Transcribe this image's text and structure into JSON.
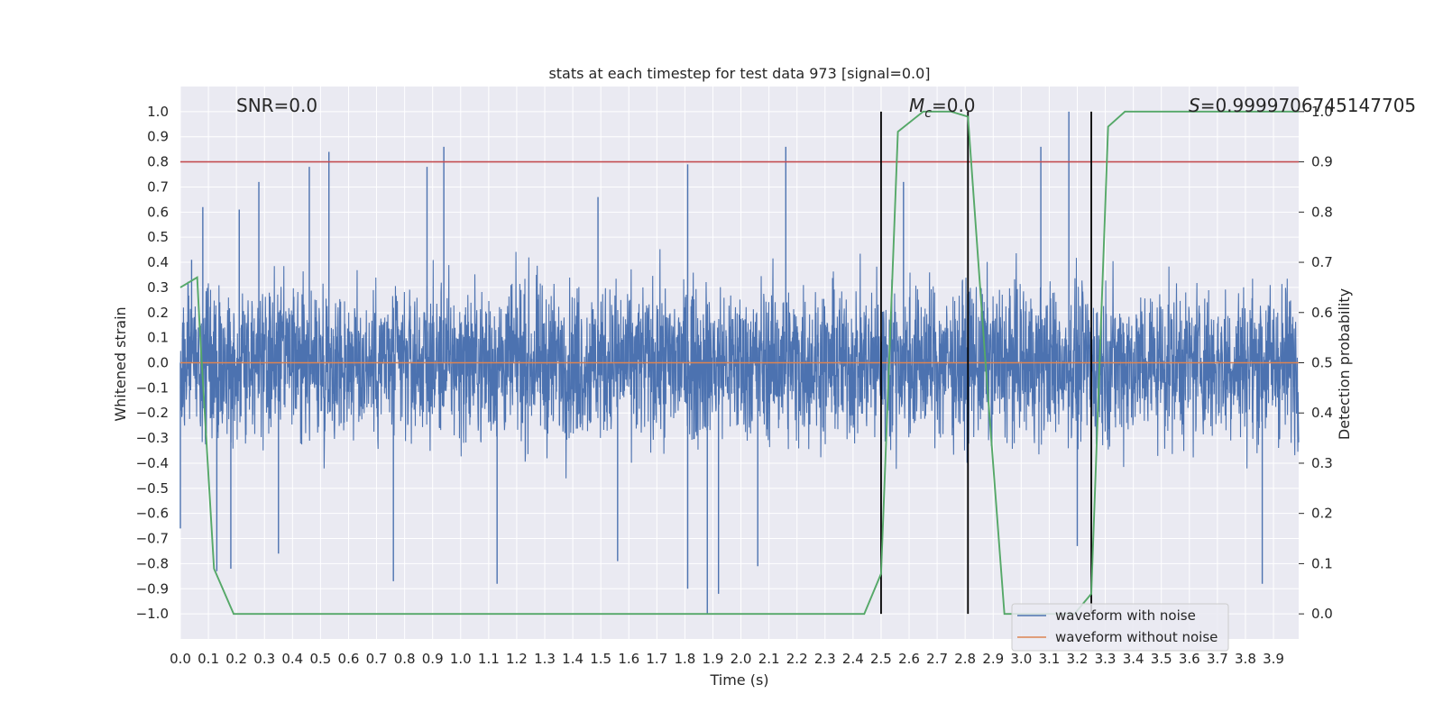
{
  "chart_data": {
    "type": "line",
    "title": "stats at each timestep for test data 973 [signal=0.0]",
    "xlabel": "Time (s)",
    "ylabel": "Whitened strain",
    "y2label": "Detection probability",
    "xlim": [
      0.0,
      3.99
    ],
    "ylim": [
      -1.1,
      1.1
    ],
    "y2lim": [
      -0.05,
      1.05
    ],
    "grid": true,
    "xticks": [
      "0.0",
      "0.1",
      "0.2",
      "0.3",
      "0.4",
      "0.5",
      "0.6",
      "0.7",
      "0.8",
      "0.9",
      "1.0",
      "1.1",
      "1.2",
      "1.3",
      "1.4",
      "1.5",
      "1.6",
      "1.7",
      "1.8",
      "1.9",
      "2.0",
      "2.1",
      "2.2",
      "2.3",
      "2.4",
      "2.5",
      "2.6",
      "2.7",
      "2.8",
      "2.9",
      "3.0",
      "3.1",
      "3.2",
      "3.3",
      "3.4",
      "3.5",
      "3.6",
      "3.7",
      "3.8",
      "3.9"
    ],
    "yticks": [
      "1.0",
      "0.9",
      "0.8",
      "0.7",
      "0.6",
      "0.5",
      "0.4",
      "0.3",
      "0.2",
      "0.1",
      "0.0",
      "−0.1",
      "−0.2",
      "−0.3",
      "−0.4",
      "−0.5",
      "−0.6",
      "−0.7",
      "−0.8",
      "−0.9",
      "−1.0"
    ],
    "y2ticks": [
      "1.0",
      "0.9",
      "0.8",
      "0.7",
      "0.6",
      "0.5",
      "0.4",
      "0.3",
      "0.2",
      "0.1",
      "0.0"
    ],
    "annotations": {
      "snr": "SNR=0.0",
      "mc_symbol": "M",
      "mc_sub": "c",
      "mc_value": "=0.0",
      "s_symbol": "S",
      "s_value": "=0.9999706745147705"
    },
    "legend": {
      "placement": "lower-right",
      "entries": [
        "waveform with noise",
        "waveform without noise"
      ]
    },
    "series": [
      {
        "name": "waveform with noise",
        "color": "#4c72b0",
        "description_type": "noise",
        "typical_amplitude": 0.28,
        "peaks": [
          [
            0.04,
            0.41
          ],
          [
            0.08,
            0.62
          ],
          [
            0.21,
            0.61
          ],
          [
            0.28,
            0.72
          ],
          [
            0.46,
            0.78
          ],
          [
            0.53,
            0.84
          ],
          [
            0.88,
            0.78
          ],
          [
            0.94,
            0.86
          ],
          [
            1.49,
            0.66
          ],
          [
            1.81,
            0.79
          ],
          [
            2.16,
            0.86
          ],
          [
            2.58,
            0.72
          ],
          [
            3.17,
            1.0
          ],
          [
            3.07,
            0.86
          ],
          [
            0.0,
            -0.66
          ],
          [
            0.13,
            -0.83
          ],
          [
            0.18,
            -0.82
          ],
          [
            0.35,
            -0.76
          ],
          [
            0.76,
            -0.87
          ],
          [
            1.13,
            -0.88
          ],
          [
            1.56,
            -0.79
          ],
          [
            1.81,
            -0.9
          ],
          [
            1.88,
            -1.0
          ],
          [
            1.92,
            -0.92
          ],
          [
            2.06,
            -0.81
          ],
          [
            3.2,
            -0.73
          ],
          [
            3.86,
            -0.88
          ]
        ]
      },
      {
        "name": "waveform without noise",
        "color": "#dd8452",
        "x": [
          0.0,
          3.99
        ],
        "y": [
          0.0,
          0.0
        ]
      },
      {
        "name": "detection probability",
        "color": "#55a868",
        "axis": "right",
        "x": [
          0.0,
          0.06,
          0.07,
          0.12,
          0.19,
          0.5,
          1.0,
          1.5,
          1.88,
          2.0,
          2.1,
          2.38,
          2.44,
          2.5,
          2.56,
          2.65,
          2.75,
          2.81,
          2.87,
          2.94,
          3.19,
          3.25,
          3.31,
          3.37,
          3.5,
          3.99
        ],
        "y": [
          0.65,
          0.67,
          0.56,
          0.09,
          0.0,
          0.0,
          0.0,
          0.0,
          0.0,
          0.0,
          0.0,
          0.0,
          0.0,
          0.08,
          0.96,
          1.0,
          1.0,
          0.99,
          0.52,
          0.0,
          0.0,
          0.04,
          0.97,
          1.0,
          1.0,
          1.0
        ]
      }
    ],
    "threshold_line": {
      "color": "#c44e52",
      "y2": 0.9
    },
    "vertical_lines": {
      "color": "#000000",
      "x": [
        2.5,
        2.81,
        3.25
      ]
    }
  }
}
